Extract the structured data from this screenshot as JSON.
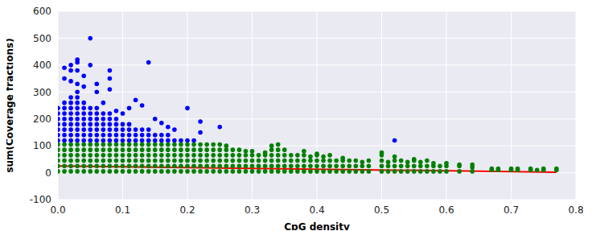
{
  "chart_data": {
    "type": "scatter",
    "xlabel": "CpG density",
    "ylabel": "sum(Coverage fractions)",
    "xlim": [
      0,
      0.8
    ],
    "xticks": [
      {
        "value": 0,
        "label": "0.0"
      },
      0.1,
      0.2,
      0.3,
      0.4,
      0.5,
      0.6,
      0.7,
      0.8
    ],
    "ylim": [
      -100,
      600
    ],
    "yticks": [
      -100,
      0,
      100,
      200,
      300,
      400,
      500,
      600
    ],
    "grid": true,
    "series": [
      {
        "type": "scatter",
        "color": "#0000ff",
        "marker": "o",
        "x": [
          0,
          0,
          0,
          0,
          0,
          0,
          0,
          0.01,
          0.01,
          0.01,
          0.01,
          0.01,
          0.01,
          0.01,
          0.01,
          0.02,
          0.02,
          0.02,
          0.02,
          0.02,
          0.02,
          0.02,
          0.02,
          0.02,
          0.03,
          0.03,
          0.03,
          0.03,
          0.03,
          0.03,
          0.03,
          0.03,
          0.03,
          0.03,
          0.04,
          0.04,
          0.04,
          0.04,
          0.04,
          0.04,
          0.04,
          0.04,
          0.05,
          0.05,
          0.05,
          0.05,
          0.05,
          0.05,
          0.05,
          0.06,
          0.06,
          0.06,
          0.06,
          0.06,
          0.06,
          0.06,
          0.07,
          0.07,
          0.07,
          0.07,
          0.07,
          0.07,
          0.08,
          0.08,
          0.08,
          0.08,
          0.08,
          0.08,
          0.09,
          0.09,
          0.09,
          0.09,
          0.09,
          0.1,
          0.1,
          0.1,
          0.1,
          0.11,
          0.11,
          0.11,
          0.11,
          0.12,
          0.12,
          0.12,
          0.13,
          0.13,
          0.13,
          0.14,
          0.14,
          0.14,
          0.15,
          0.15,
          0.16,
          0.16,
          0.17,
          0.17,
          0.18,
          0.19,
          0.2,
          0.21,
          0.01,
          0.01,
          0.02,
          0.02,
          0.02,
          0.03,
          0.03,
          0.03,
          0.03,
          0.04,
          0.04,
          0.05,
          0.05,
          0.06,
          0.06,
          0.07,
          0.08,
          0.08,
          0.08,
          0.09,
          0.1,
          0.11,
          0.12,
          0.13,
          0.14,
          0.15,
          0.16,
          0.17,
          0.18,
          0.2,
          0.22,
          0.22,
          0.25,
          0.52
        ],
        "values": [
          120,
          140,
          160,
          180,
          200,
          220,
          240,
          120,
          140,
          160,
          180,
          200,
          220,
          240,
          260,
          120,
          140,
          160,
          180,
          200,
          220,
          240,
          260,
          280,
          120,
          140,
          160,
          180,
          200,
          220,
          240,
          260,
          280,
          300,
          120,
          140,
          160,
          180,
          200,
          220,
          240,
          260,
          120,
          140,
          160,
          180,
          200,
          220,
          240,
          120,
          140,
          160,
          180,
          200,
          220,
          240,
          120,
          140,
          160,
          180,
          200,
          220,
          120,
          140,
          160,
          180,
          200,
          220,
          120,
          140,
          160,
          180,
          200,
          120,
          140,
          160,
          180,
          120,
          140,
          160,
          180,
          120,
          140,
          160,
          120,
          140,
          160,
          120,
          140,
          160,
          120,
          140,
          120,
          140,
          120,
          140,
          120,
          120,
          120,
          120,
          390,
          350,
          400,
          380,
          340,
          420,
          410,
          380,
          330,
          360,
          320,
          500,
          400,
          300,
          330,
          260,
          380,
          350,
          310,
          230,
          220,
          240,
          270,
          250,
          410,
          200,
          185,
          170,
          160,
          240,
          190,
          150,
          170,
          120
        ]
      },
      {
        "type": "scatter",
        "color": "#008000",
        "marker": "o",
        "x": [
          0,
          0,
          0,
          0,
          0,
          0,
          0.01,
          0.01,
          0.01,
          0.01,
          0.01,
          0.01,
          0.02,
          0.02,
          0.02,
          0.02,
          0.02,
          0.02,
          0.03,
          0.03,
          0.03,
          0.03,
          0.03,
          0.03,
          0.04,
          0.04,
          0.04,
          0.04,
          0.04,
          0.04,
          0.05,
          0.05,
          0.05,
          0.05,
          0.05,
          0.05,
          0.06,
          0.06,
          0.06,
          0.06,
          0.06,
          0.06,
          0.07,
          0.07,
          0.07,
          0.07,
          0.07,
          0.07,
          0.08,
          0.08,
          0.08,
          0.08,
          0.08,
          0.08,
          0.09,
          0.09,
          0.09,
          0.09,
          0.09,
          0.09,
          0.1,
          0.1,
          0.1,
          0.1,
          0.1,
          0.1,
          0.11,
          0.11,
          0.11,
          0.11,
          0.11,
          0.11,
          0.12,
          0.12,
          0.12,
          0.12,
          0.12,
          0.12,
          0.13,
          0.13,
          0.13,
          0.13,
          0.13,
          0.13,
          0.14,
          0.14,
          0.14,
          0.14,
          0.14,
          0.14,
          0.15,
          0.15,
          0.15,
          0.15,
          0.15,
          0.15,
          0.16,
          0.16,
          0.16,
          0.16,
          0.16,
          0.16,
          0.17,
          0.17,
          0.17,
          0.17,
          0.17,
          0.17,
          0.18,
          0.18,
          0.18,
          0.18,
          0.18,
          0.18,
          0.19,
          0.19,
          0.19,
          0.19,
          0.19,
          0.19,
          0.2,
          0.2,
          0.2,
          0.2,
          0.2,
          0.2,
          0.21,
          0.21,
          0.21,
          0.21,
          0.21,
          0.21,
          0.22,
          0.22,
          0.22,
          0.22,
          0.22,
          0.22,
          0.23,
          0.23,
          0.23,
          0.23,
          0.23,
          0.23,
          0.24,
          0.24,
          0.24,
          0.24,
          0.24,
          0.24,
          0.25,
          0.25,
          0.25,
          0.25,
          0.25,
          0.25,
          0.26,
          0.26,
          0.26,
          0.26,
          0.26,
          0.26,
          0.27,
          0.27,
          0.27,
          0.27,
          0.27,
          0.28,
          0.28,
          0.28,
          0.28,
          0.28,
          0.29,
          0.29,
          0.29,
          0.29,
          0.29,
          0.3,
          0.3,
          0.3,
          0.3,
          0.3,
          0.31,
          0.31,
          0.31,
          0.31,
          0.32,
          0.32,
          0.32,
          0.32,
          0.32,
          0.33,
          0.33,
          0.33,
          0.33,
          0.33,
          0.33,
          0.34,
          0.34,
          0.34,
          0.34,
          0.34,
          0.34,
          0.35,
          0.35,
          0.35,
          0.35,
          0.35,
          0.36,
          0.36,
          0.36,
          0.36,
          0.37,
          0.37,
          0.37,
          0.37,
          0.38,
          0.38,
          0.38,
          0.38,
          0.38,
          0.39,
          0.39,
          0.39,
          0.39,
          0.4,
          0.4,
          0.4,
          0.4,
          0.4,
          0.41,
          0.41,
          0.41,
          0.41,
          0.42,
          0.42,
          0.42,
          0.42,
          0.43,
          0.43,
          0.43,
          0.44,
          0.44,
          0.44,
          0.44,
          0.45,
          0.45,
          0.45,
          0.46,
          0.46,
          0.46,
          0.47,
          0.47,
          0.47,
          0.48,
          0.48,
          0.48,
          0.5,
          0.5,
          0.5,
          0.5,
          0.5,
          0.51,
          0.51,
          0.51,
          0.52,
          0.52,
          0.52,
          0.52,
          0.53,
          0.53,
          0.53,
          0.54,
          0.54,
          0.54,
          0.55,
          0.55,
          0.55,
          0.55,
          0.56,
          0.56,
          0.56,
          0.57,
          0.57,
          0.57,
          0.58,
          0.58,
          0.58,
          0.59,
          0.59,
          0.6,
          0.6,
          0.6,
          0.62,
          0.62,
          0.62,
          0.64,
          0.64,
          0.64,
          0.67,
          0.67,
          0.68,
          0.68,
          0.7,
          0.7,
          0.71,
          0.71,
          0.73,
          0.73,
          0.74,
          0.75,
          0.75,
          0.77,
          0.77
        ],
        "values": [
          5,
          25,
          45,
          65,
          85,
          105,
          5,
          25,
          45,
          65,
          85,
          105,
          5,
          25,
          45,
          65,
          85,
          105,
          5,
          25,
          45,
          65,
          85,
          105,
          5,
          25,
          45,
          65,
          85,
          105,
          5,
          25,
          45,
          65,
          85,
          105,
          5,
          25,
          45,
          65,
          85,
          105,
          5,
          25,
          45,
          65,
          85,
          105,
          5,
          25,
          45,
          65,
          85,
          105,
          5,
          25,
          45,
          65,
          85,
          105,
          5,
          25,
          45,
          65,
          85,
          105,
          5,
          25,
          45,
          65,
          85,
          105,
          5,
          25,
          45,
          65,
          85,
          105,
          5,
          25,
          45,
          65,
          85,
          105,
          5,
          25,
          45,
          65,
          85,
          105,
          5,
          25,
          45,
          65,
          85,
          105,
          5,
          25,
          45,
          65,
          85,
          105,
          5,
          25,
          45,
          65,
          85,
          105,
          5,
          25,
          45,
          65,
          85,
          105,
          5,
          25,
          45,
          65,
          85,
          105,
          5,
          25,
          45,
          65,
          85,
          105,
          5,
          25,
          45,
          65,
          85,
          105,
          5,
          25,
          45,
          65,
          85,
          105,
          5,
          25,
          45,
          65,
          85,
          105,
          5,
          25,
          45,
          65,
          85,
          105,
          5,
          25,
          45,
          65,
          85,
          105,
          5,
          25,
          45,
          65,
          85,
          100,
          5,
          25,
          45,
          65,
          85,
          5,
          25,
          45,
          65,
          85,
          5,
          25,
          45,
          65,
          80,
          5,
          25,
          45,
          65,
          80,
          5,
          25,
          45,
          65,
          5,
          25,
          45,
          65,
          75,
          5,
          25,
          45,
          65,
          85,
          100,
          5,
          25,
          45,
          65,
          85,
          105,
          5,
          25,
          45,
          65,
          85,
          5,
          25,
          45,
          65,
          5,
          25,
          45,
          65,
          5,
          25,
          45,
          65,
          80,
          5,
          25,
          45,
          60,
          5,
          25,
          45,
          65,
          70,
          5,
          25,
          45,
          60,
          5,
          25,
          45,
          65,
          5,
          25,
          45,
          5,
          25,
          45,
          55,
          5,
          25,
          45,
          5,
          25,
          45,
          5,
          25,
          40,
          5,
          25,
          45,
          5,
          25,
          45,
          65,
          75,
          5,
          25,
          40,
          5,
          25,
          45,
          60,
          5,
          25,
          45,
          5,
          25,
          40,
          5,
          25,
          45,
          50,
          5,
          25,
          40,
          5,
          25,
          45,
          5,
          25,
          35,
          5,
          25,
          5,
          25,
          35,
          5,
          25,
          30,
          5,
          20,
          30,
          10,
          15,
          10,
          15,
          10,
          15,
          10,
          15,
          10,
          15,
          10,
          10,
          15,
          10,
          15
        ]
      },
      {
        "type": "line",
        "color": "#ff0000",
        "x": [
          0,
          0.77
        ],
        "values": [
          25,
          2
        ]
      }
    ]
  }
}
